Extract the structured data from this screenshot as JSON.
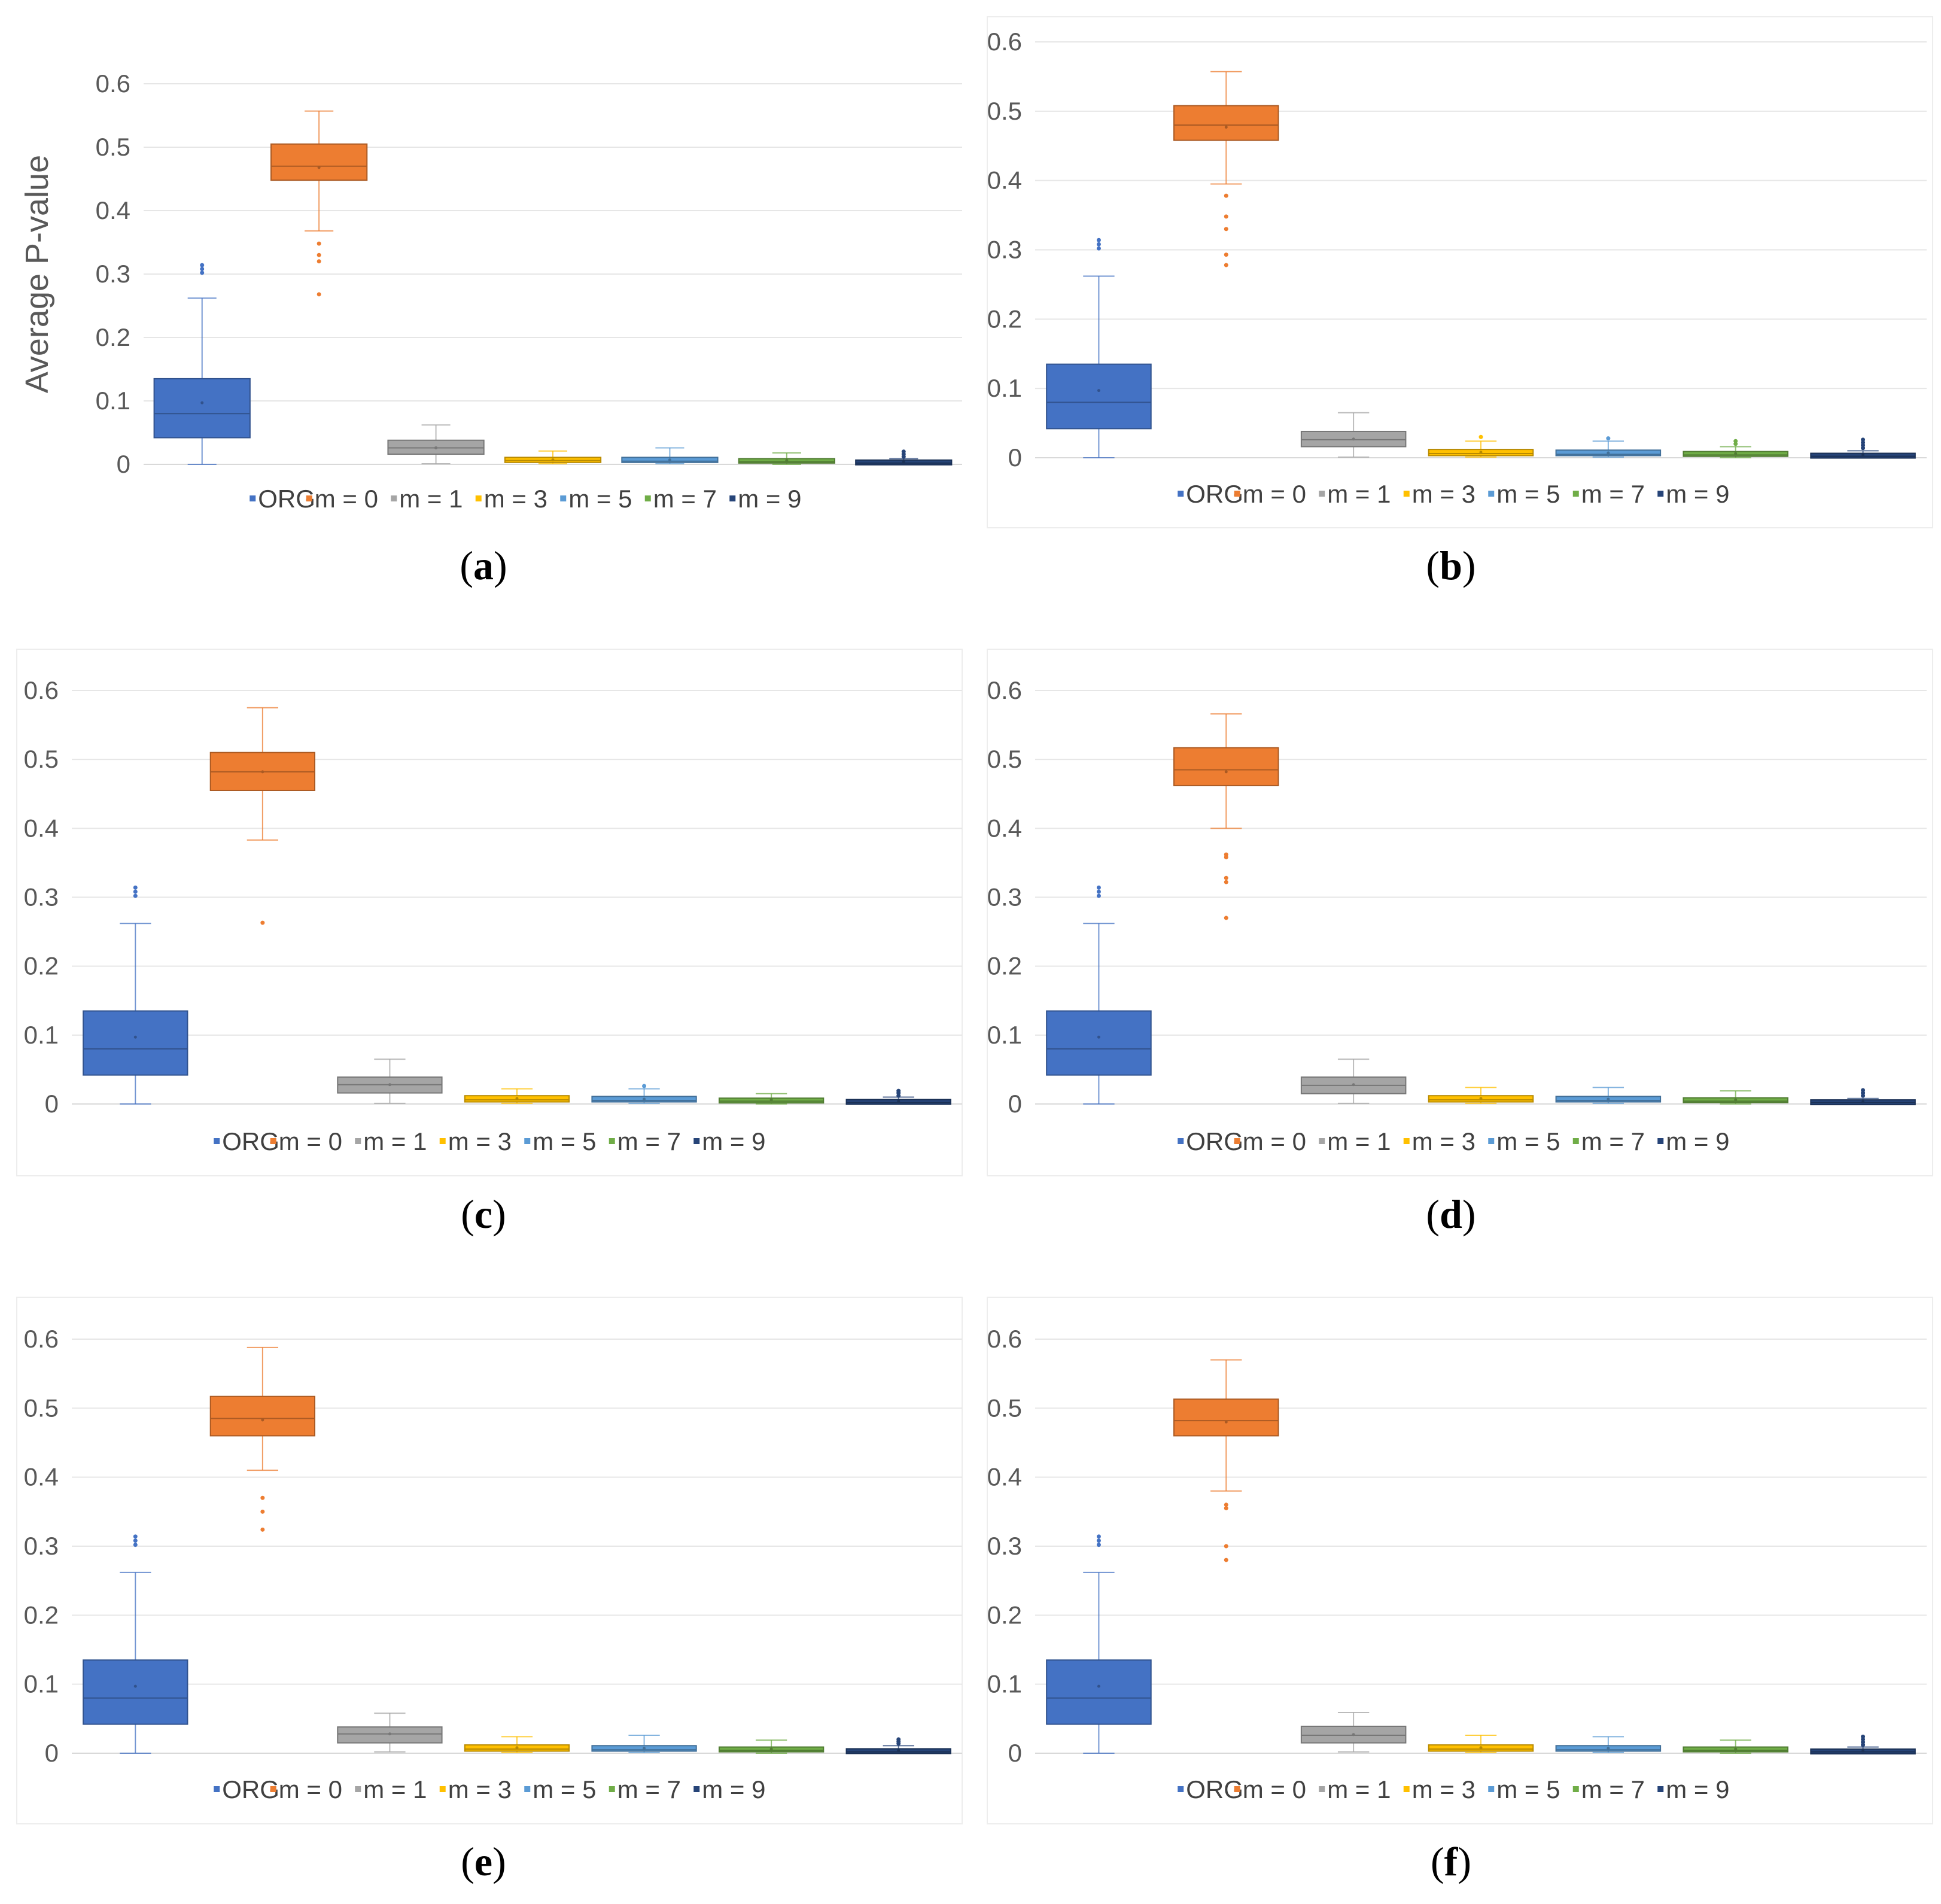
{
  "figure": {
    "series_names": [
      "ORG",
      "m = 0",
      "m = 1",
      "m = 3",
      "m = 5",
      "m = 7",
      "m = 9"
    ],
    "series_colors": [
      "#4472C4",
      "#ED7D31",
      "#A5A5A5",
      "#FFC000",
      "#5B9BD5",
      "#70AD47",
      "#264478"
    ]
  },
  "chart_data": [
    {
      "type": "boxplot",
      "panel_label": "a",
      "caption_open": "(",
      "caption_close": ")",
      "ylabel": "Average P-value",
      "ylim": [
        0,
        0.6
      ],
      "yticks": [
        0,
        0.1,
        0.2,
        0.3,
        0.4,
        0.5,
        0.6
      ],
      "ytick_labels": [
        "0",
        "0.1",
        "0.2",
        "0.3",
        "0.4",
        "0.5",
        "0.6"
      ],
      "legend": [
        "ORG",
        "m = 0",
        "m = 1",
        "m = 3",
        "m = 5",
        "m = 7",
        "m = 9"
      ],
      "series": [
        {
          "name": "ORG",
          "min": 0.0,
          "q1": 0.042,
          "median": 0.08,
          "q3": 0.135,
          "max": 0.262,
          "mean": 0.097,
          "outliers": [
            0.302,
            0.308,
            0.314
          ]
        },
        {
          "name": "m = 0",
          "min": 0.368,
          "q1": 0.448,
          "median": 0.47,
          "q3": 0.505,
          "max": 0.557,
          "mean": 0.468,
          "outliers": [
            0.348,
            0.33,
            0.32,
            0.268
          ]
        },
        {
          "name": "m = 1",
          "min": 0.001,
          "q1": 0.016,
          "median": 0.026,
          "q3": 0.038,
          "max": 0.062,
          "mean": 0.026,
          "outliers": []
        },
        {
          "name": "m = 3",
          "min": 0.001,
          "q1": 0.003,
          "median": 0.006,
          "q3": 0.011,
          "max": 0.021,
          "mean": 0.007,
          "outliers": []
        },
        {
          "name": "m = 5",
          "min": 0.001,
          "q1": 0.003,
          "median": 0.005,
          "q3": 0.011,
          "max": 0.026,
          "mean": 0.007,
          "outliers": []
        },
        {
          "name": "m = 7",
          "min": 0.0,
          "q1": 0.002,
          "median": 0.004,
          "q3": 0.009,
          "max": 0.018,
          "mean": 0.006,
          "outliers": []
        },
        {
          "name": "m = 9",
          "min": 0.0,
          "q1": 0.001,
          "median": 0.002,
          "q3": 0.005,
          "max": 0.009,
          "mean": 0.004,
          "outliers": [
            0.012,
            0.016,
            0.02
          ]
        }
      ]
    },
    {
      "type": "boxplot",
      "panel_label": "b",
      "caption_open": "(",
      "caption_close": ")",
      "ylabel": "",
      "ylim": [
        0,
        0.6
      ],
      "yticks": [
        0,
        0.1,
        0.2,
        0.3,
        0.4,
        0.5,
        0.6
      ],
      "ytick_labels": [
        "0",
        "0.1",
        "0.2",
        "0.3",
        "0.4",
        "0.5",
        "0.6"
      ],
      "legend": [
        "ORG",
        "m = 0",
        "m = 1",
        "m = 3",
        "m = 5",
        "m = 7",
        "m = 9"
      ],
      "series": [
        {
          "name": "ORG",
          "min": 0.0,
          "q1": 0.042,
          "median": 0.08,
          "q3": 0.135,
          "max": 0.262,
          "mean": 0.097,
          "outliers": [
            0.302,
            0.308,
            0.314
          ]
        },
        {
          "name": "m = 0",
          "min": 0.395,
          "q1": 0.458,
          "median": 0.48,
          "q3": 0.508,
          "max": 0.557,
          "mean": 0.477,
          "outliers": [
            0.378,
            0.348,
            0.33,
            0.293,
            0.278
          ]
        },
        {
          "name": "m = 1",
          "min": 0.001,
          "q1": 0.016,
          "median": 0.026,
          "q3": 0.038,
          "max": 0.065,
          "mean": 0.027,
          "outliers": []
        },
        {
          "name": "m = 3",
          "min": 0.001,
          "q1": 0.003,
          "median": 0.006,
          "q3": 0.012,
          "max": 0.024,
          "mean": 0.008,
          "outliers": [
            0.03
          ]
        },
        {
          "name": "m = 5",
          "min": 0.001,
          "q1": 0.003,
          "median": 0.005,
          "q3": 0.011,
          "max": 0.024,
          "mean": 0.007,
          "outliers": [
            0.028
          ]
        },
        {
          "name": "m = 7",
          "min": 0.0,
          "q1": 0.002,
          "median": 0.004,
          "q3": 0.009,
          "max": 0.016,
          "mean": 0.006,
          "outliers": [
            0.02,
            0.024
          ]
        },
        {
          "name": "m = 9",
          "min": 0.0,
          "q1": 0.001,
          "median": 0.002,
          "q3": 0.005,
          "max": 0.01,
          "mean": 0.004,
          "outliers": [
            0.014,
            0.018,
            0.022,
            0.026
          ]
        }
      ]
    },
    {
      "type": "boxplot",
      "panel_label": "c",
      "caption_open": "(",
      "caption_close": ")",
      "ylabel": "",
      "ylim": [
        0,
        0.6
      ],
      "yticks": [
        0,
        0.1,
        0.2,
        0.3,
        0.4,
        0.5,
        0.6
      ],
      "ytick_labels": [
        "0",
        "0.1",
        "0.2",
        "0.3",
        "0.4",
        "0.5",
        "0.6"
      ],
      "legend": [
        "ORG",
        "m = 0",
        "m = 1",
        "m = 3",
        "m = 5",
        "m = 7",
        "m = 9"
      ],
      "series": [
        {
          "name": "ORG",
          "min": 0.0,
          "q1": 0.042,
          "median": 0.08,
          "q3": 0.135,
          "max": 0.262,
          "mean": 0.097,
          "outliers": [
            0.302,
            0.308,
            0.314
          ]
        },
        {
          "name": "m = 0",
          "min": 0.383,
          "q1": 0.455,
          "median": 0.482,
          "q3": 0.51,
          "max": 0.575,
          "mean": 0.482,
          "outliers": [
            0.263
          ]
        },
        {
          "name": "m = 1",
          "min": 0.001,
          "q1": 0.016,
          "median": 0.028,
          "q3": 0.039,
          "max": 0.065,
          "mean": 0.028,
          "outliers": []
        },
        {
          "name": "m = 3",
          "min": 0.001,
          "q1": 0.003,
          "median": 0.006,
          "q3": 0.012,
          "max": 0.022,
          "mean": 0.008,
          "outliers": []
        },
        {
          "name": "m = 5",
          "min": 0.001,
          "q1": 0.003,
          "median": 0.005,
          "q3": 0.011,
          "max": 0.022,
          "mean": 0.007,
          "outliers": [
            0.026
          ]
        },
        {
          "name": "m = 7",
          "min": 0.0,
          "q1": 0.002,
          "median": 0.004,
          "q3": 0.008,
          "max": 0.015,
          "mean": 0.006,
          "outliers": []
        },
        {
          "name": "m = 9",
          "min": 0.0,
          "q1": 0.001,
          "median": 0.002,
          "q3": 0.005,
          "max": 0.01,
          "mean": 0.004,
          "outliers": [
            0.012,
            0.016,
            0.019
          ]
        }
      ]
    },
    {
      "type": "boxplot",
      "panel_label": "d",
      "caption_open": "(",
      "caption_close": ")",
      "ylabel": "",
      "ylim": [
        0,
        0.6
      ],
      "yticks": [
        0,
        0.1,
        0.2,
        0.3,
        0.4,
        0.5,
        0.6
      ],
      "ytick_labels": [
        "0",
        "0.1",
        "0.2",
        "0.3",
        "0.4",
        "0.5",
        "0.6"
      ],
      "legend": [
        "ORG",
        "m = 0",
        "m = 1",
        "m = 3",
        "m = 5",
        "m = 7",
        "m = 9"
      ],
      "series": [
        {
          "name": "ORG",
          "min": 0.0,
          "q1": 0.042,
          "median": 0.08,
          "q3": 0.135,
          "max": 0.262,
          "mean": 0.097,
          "outliers": [
            0.302,
            0.308,
            0.314
          ]
        },
        {
          "name": "m = 0",
          "min": 0.4,
          "q1": 0.462,
          "median": 0.485,
          "q3": 0.517,
          "max": 0.566,
          "mean": 0.482,
          "outliers": [
            0.362,
            0.358,
            0.328,
            0.322,
            0.27
          ]
        },
        {
          "name": "m = 1",
          "min": 0.001,
          "q1": 0.015,
          "median": 0.027,
          "q3": 0.039,
          "max": 0.065,
          "mean": 0.028,
          "outliers": []
        },
        {
          "name": "m = 3",
          "min": 0.001,
          "q1": 0.003,
          "median": 0.006,
          "q3": 0.012,
          "max": 0.024,
          "mean": 0.008,
          "outliers": []
        },
        {
          "name": "m = 5",
          "min": 0.001,
          "q1": 0.003,
          "median": 0.005,
          "q3": 0.011,
          "max": 0.024,
          "mean": 0.007,
          "outliers": []
        },
        {
          "name": "m = 7",
          "min": 0.0,
          "q1": 0.002,
          "median": 0.004,
          "q3": 0.009,
          "max": 0.019,
          "mean": 0.006,
          "outliers": []
        },
        {
          "name": "m = 9",
          "min": 0.0,
          "q1": 0.001,
          "median": 0.002,
          "q3": 0.004,
          "max": 0.008,
          "mean": 0.003,
          "outliers": [
            0.012,
            0.016,
            0.02
          ]
        }
      ]
    },
    {
      "type": "boxplot",
      "panel_label": "e",
      "caption_open": "(",
      "caption_close": ")",
      "ylabel": "",
      "ylim": [
        0,
        0.6
      ],
      "yticks": [
        0,
        0.1,
        0.2,
        0.3,
        0.4,
        0.5,
        0.6
      ],
      "ytick_labels": [
        "0",
        "0.1",
        "0.2",
        "0.3",
        "0.4",
        "0.5",
        "0.6"
      ],
      "legend": [
        "ORG",
        "m = 0",
        "m = 1",
        "m = 3",
        "m = 5",
        "m = 7",
        "m = 9"
      ],
      "series": [
        {
          "name": "ORG",
          "min": 0.0,
          "q1": 0.042,
          "median": 0.08,
          "q3": 0.135,
          "max": 0.262,
          "mean": 0.097,
          "outliers": [
            0.302,
            0.308,
            0.314
          ]
        },
        {
          "name": "m = 0",
          "min": 0.41,
          "q1": 0.46,
          "median": 0.485,
          "q3": 0.517,
          "max": 0.588,
          "mean": 0.483,
          "outliers": [
            0.37,
            0.35,
            0.324
          ]
        },
        {
          "name": "m = 1",
          "min": 0.002,
          "q1": 0.015,
          "median": 0.028,
          "q3": 0.038,
          "max": 0.058,
          "mean": 0.028,
          "outliers": []
        },
        {
          "name": "m = 3",
          "min": 0.001,
          "q1": 0.003,
          "median": 0.006,
          "q3": 0.012,
          "max": 0.024,
          "mean": 0.008,
          "outliers": []
        },
        {
          "name": "m = 5",
          "min": 0.001,
          "q1": 0.003,
          "median": 0.005,
          "q3": 0.011,
          "max": 0.026,
          "mean": 0.007,
          "outliers": []
        },
        {
          "name": "m = 7",
          "min": 0.0,
          "q1": 0.002,
          "median": 0.004,
          "q3": 0.009,
          "max": 0.019,
          "mean": 0.006,
          "outliers": []
        },
        {
          "name": "m = 9",
          "min": 0.0,
          "q1": 0.001,
          "median": 0.002,
          "q3": 0.005,
          "max": 0.011,
          "mean": 0.004,
          "outliers": [
            0.014,
            0.017,
            0.02
          ]
        }
      ]
    },
    {
      "type": "boxplot",
      "panel_label": "f",
      "caption_open": "(",
      "caption_close": ")",
      "ylabel": "",
      "ylim": [
        0,
        0.6
      ],
      "yticks": [
        0,
        0.1,
        0.2,
        0.3,
        0.4,
        0.5,
        0.6
      ],
      "ytick_labels": [
        "0",
        "0.1",
        "0.2",
        "0.3",
        "0.4",
        "0.5",
        "0.6"
      ],
      "legend": [
        "ORG",
        "m = 0",
        "m = 1",
        "m = 3",
        "m = 5",
        "m = 7",
        "m = 9"
      ],
      "series": [
        {
          "name": "ORG",
          "min": 0.0,
          "q1": 0.042,
          "median": 0.08,
          "q3": 0.135,
          "max": 0.262,
          "mean": 0.097,
          "outliers": [
            0.302,
            0.308,
            0.314
          ]
        },
        {
          "name": "m = 0",
          "min": 0.38,
          "q1": 0.46,
          "median": 0.482,
          "q3": 0.513,
          "max": 0.57,
          "mean": 0.48,
          "outliers": [
            0.36,
            0.355,
            0.3,
            0.28
          ]
        },
        {
          "name": "m = 1",
          "min": 0.002,
          "q1": 0.015,
          "median": 0.026,
          "q3": 0.039,
          "max": 0.059,
          "mean": 0.027,
          "outliers": []
        },
        {
          "name": "m = 3",
          "min": 0.001,
          "q1": 0.003,
          "median": 0.006,
          "q3": 0.012,
          "max": 0.026,
          "mean": 0.008,
          "outliers": []
        },
        {
          "name": "m = 5",
          "min": 0.001,
          "q1": 0.003,
          "median": 0.005,
          "q3": 0.011,
          "max": 0.024,
          "mean": 0.007,
          "outliers": []
        },
        {
          "name": "m = 7",
          "min": 0.0,
          "q1": 0.002,
          "median": 0.004,
          "q3": 0.009,
          "max": 0.019,
          "mean": 0.006,
          "outliers": []
        },
        {
          "name": "m = 9",
          "min": 0.0,
          "q1": 0.001,
          "median": 0.002,
          "q3": 0.004,
          "max": 0.009,
          "mean": 0.003,
          "outliers": [
            0.012,
            0.016,
            0.02,
            0.024
          ]
        }
      ]
    }
  ]
}
